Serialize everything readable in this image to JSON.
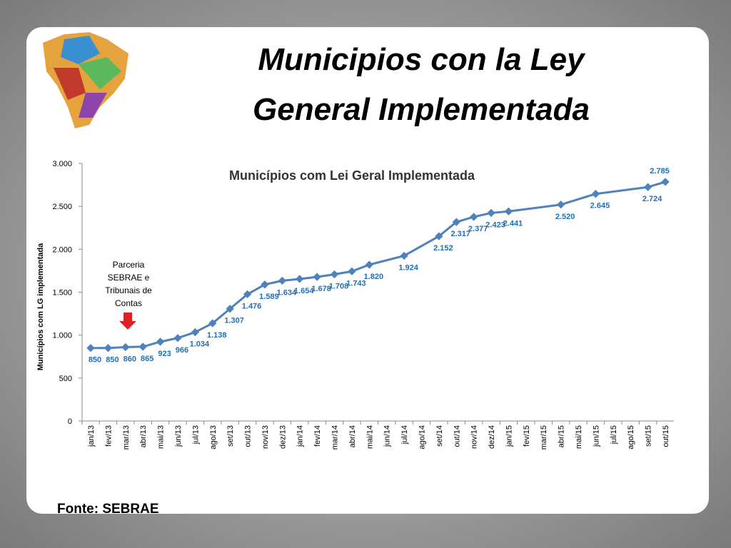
{
  "slide": {
    "title_lines": [
      "Municipios con la Ley",
      "General Implementada"
    ],
    "source": "Fonte: SEBRAE"
  },
  "chart_data": {
    "type": "line",
    "title": "Municípios com Lei Geral Implementada",
    "y_label": "Municípios com LG implementada",
    "annotation": [
      "Parceria",
      "SEBRAE e",
      "Tribunais de",
      "Contas"
    ],
    "categories": [
      "jan/13",
      "fev/13",
      "mar/13",
      "abr/13",
      "mai/13",
      "jun/13",
      "jul/13",
      "ago/13",
      "set/13",
      "out/13",
      "nov/13",
      "dez/13",
      "jan/14",
      "fev/14",
      "mar/14",
      "abr/14",
      "mai/14",
      "jun/14",
      "jul/14",
      "ago/14",
      "set/14",
      "out/14",
      "nov/14",
      "dez/14",
      "jan/15",
      "fev/15",
      "mar/15",
      "abr/15",
      "mai/15",
      "jun/15",
      "jul/15",
      "ago/15",
      "set/15",
      "out/15"
    ],
    "series": [
      {
        "name": "Municípios",
        "color": "#4f81bd",
        "values": [
          850,
          850,
          860,
          865,
          923,
          966,
          1034,
          1138,
          1307,
          1476,
          1589,
          1634,
          1654,
          1678,
          1708,
          1743,
          1820,
          null,
          1924,
          null,
          2152,
          2317,
          2377,
          2423,
          2441,
          null,
          null,
          2520,
          null,
          2645,
          null,
          null,
          2724,
          2785
        ],
        "value_labels": [
          "850",
          "850",
          "860",
          "865",
          "923",
          "966",
          "1.034",
          "1.138",
          "1.307",
          "1.476",
          "1.589",
          "1.634",
          "1.654",
          "1.678",
          "1.708",
          "1.743",
          "1.820",
          null,
          "1.924",
          null,
          "2.152",
          "2.317",
          "2.377",
          "2.423",
          "2.441",
          null,
          null,
          "2.520",
          null,
          "2.645",
          null,
          null,
          "2.724",
          "2.785"
        ]
      }
    ],
    "ylim": [
      0,
      3000
    ],
    "yticks": [
      0,
      500,
      {
        "value": 1000,
        "label": "1.000"
      },
      {
        "value": 1500,
        "label": "1.500"
      },
      {
        "value": 2000,
        "label": "2.000"
      },
      {
        "value": 2500,
        "label": "2.500"
      },
      {
        "value": 3000,
        "label": "3.000"
      }
    ],
    "label_color": "#1f6fb5",
    "arrow_color": "#e02020"
  }
}
